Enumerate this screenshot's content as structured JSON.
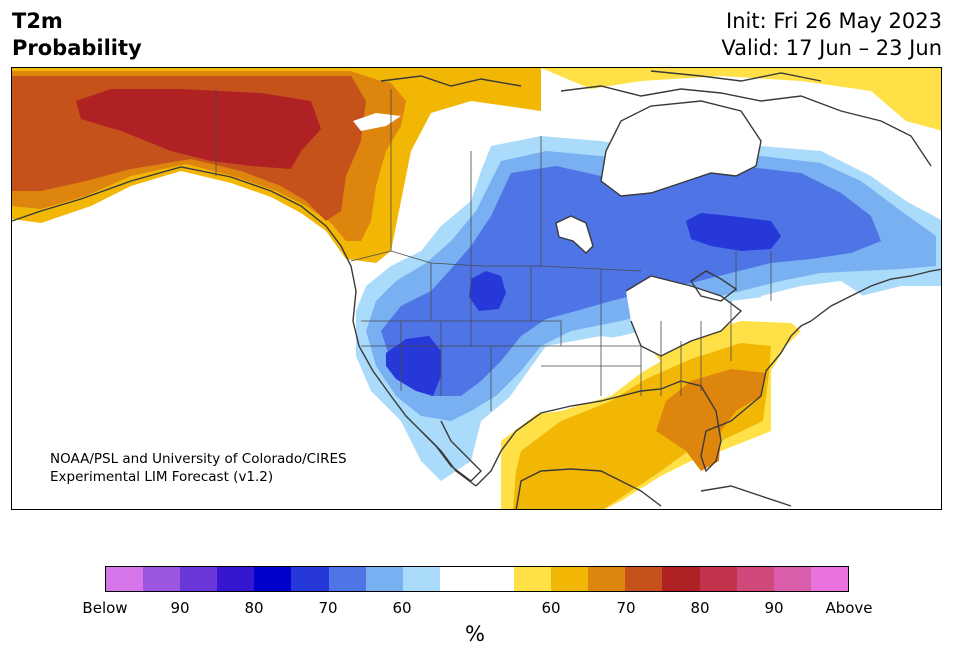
{
  "header": {
    "variable": "T2m",
    "product": "Probability",
    "init": "Init: Fri 26 May 2023",
    "valid": "Valid: 17 Jun – 23 Jun"
  },
  "credit": {
    "line1": "NOAA/PSL and University of Colorado/CIRES",
    "line2": "Experimental LIM Forecast (v1.2)"
  },
  "colorbar": {
    "unit": "%",
    "colors": [
      "#d674ea",
      "#9c56e2",
      "#6b37d9",
      "#3616d1",
      "#0000cc",
      "#2638d8",
      "#4e74e6",
      "#78b0f2",
      "#abdbfb",
      "#ffffff",
      "#ffffff",
      "#ffe047",
      "#f2b705",
      "#de850d",
      "#c5521b",
      "#b02124",
      "#c3334d",
      "#cf4a7a",
      "#da5dab",
      "#e873dd"
    ],
    "tick_labels": [
      "Below",
      "90",
      "80",
      "70",
      "60",
      "60",
      "70",
      "80",
      "90",
      "Above"
    ]
  },
  "map": {
    "legend_colors": {
      "above_50_60": "#ffe047",
      "above_60_70": "#f2b705",
      "above_70_80": "#de850d",
      "above_80": "#c5521b",
      "above_90": "#b02124",
      "below_50_60": "#abdbfb",
      "below_60_70": "#78b0f2",
      "below_70_80": "#4e74e6",
      "below_80_90": "#2638d8"
    }
  }
}
